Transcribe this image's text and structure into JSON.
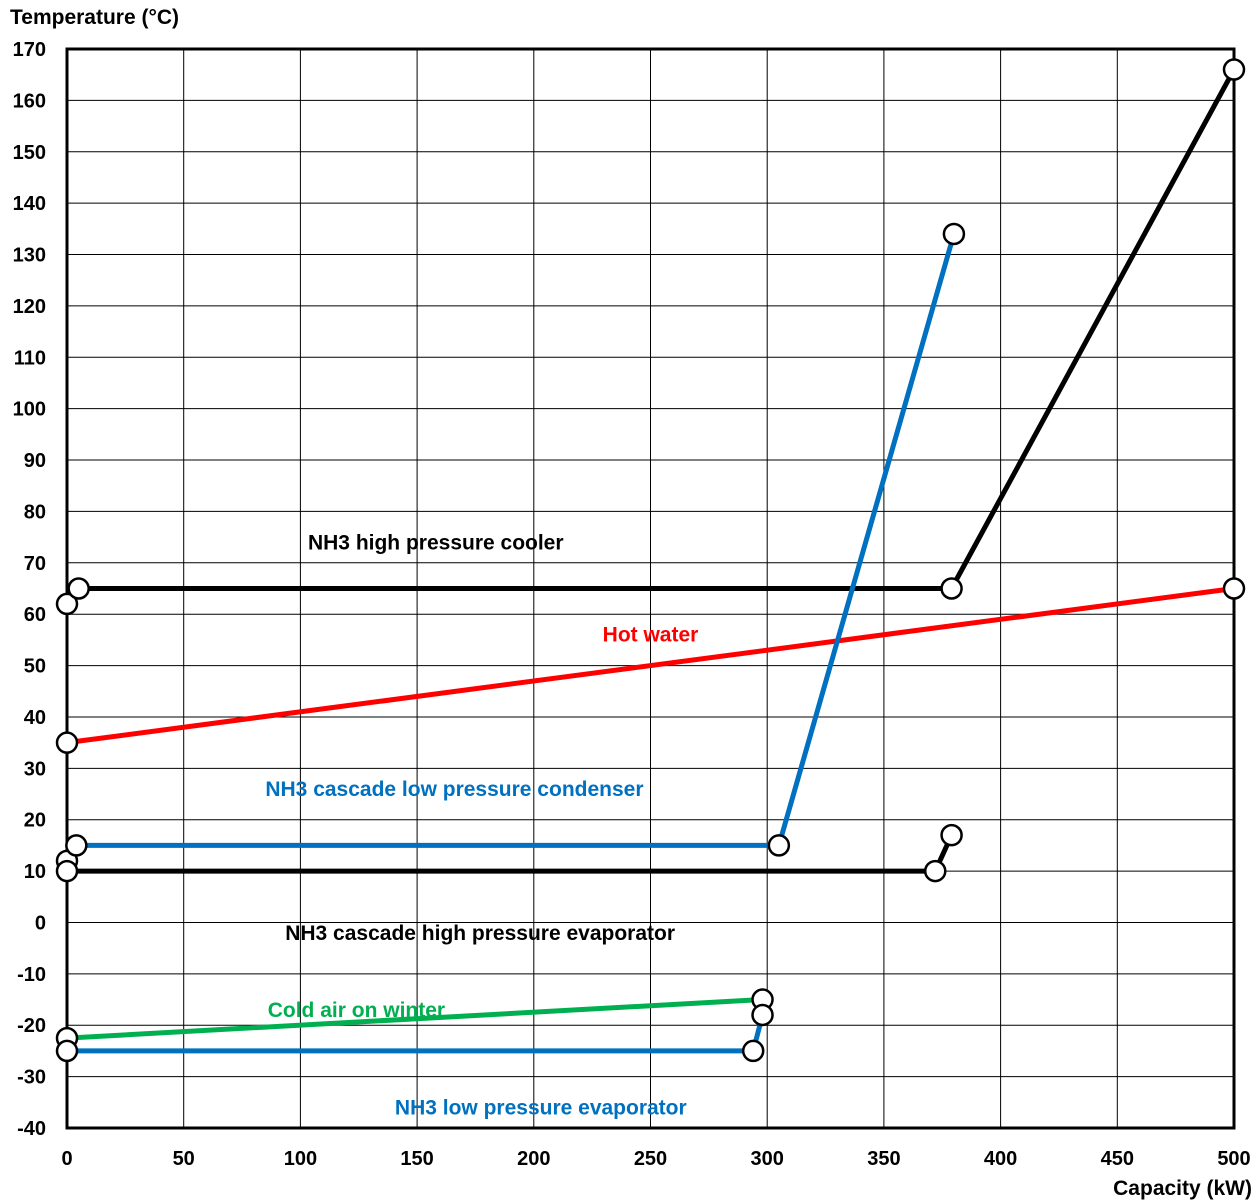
{
  "chart_data": {
    "type": "line",
    "ylabel": "Temperature (°C)",
    "xlabel": "Capacity (kW)",
    "xlim": [
      0,
      500
    ],
    "ylim": [
      -40,
      170
    ],
    "xticks": [
      0,
      50,
      100,
      150,
      200,
      250,
      300,
      350,
      400,
      450,
      500
    ],
    "yticks": [
      170,
      160,
      150,
      140,
      130,
      120,
      110,
      100,
      90,
      80,
      70,
      60,
      50,
      40,
      30,
      20,
      10,
      0,
      -10,
      -20,
      -30,
      -40
    ],
    "grid": true,
    "series": [
      {
        "name": "NH3 high pressure cooler",
        "color": "#000000",
        "points": [
          [
            5,
            65
          ],
          [
            379,
            65
          ],
          [
            500,
            166
          ]
        ]
      },
      {
        "name": "Hot water",
        "color": "#ff0000",
        "points": [
          [
            0,
            35
          ],
          [
            500,
            65
          ]
        ]
      },
      {
        "name": "NH3 cascade low pressure condenser",
        "color": "#0070c0",
        "points": [
          [
            4,
            15
          ],
          [
            305,
            15
          ],
          [
            380,
            134
          ]
        ]
      },
      {
        "name": "NH3 cascade high pressure evaporator",
        "color": "#000000",
        "points": [
          [
            0,
            10
          ],
          [
            372,
            10
          ],
          [
            379,
            17
          ]
        ]
      },
      {
        "name": "Cold air on winter",
        "color": "#00b050",
        "points": [
          [
            0,
            -22.5
          ],
          [
            298,
            -15
          ]
        ]
      },
      {
        "name": "NH3 low pressure evaporator",
        "color": "#0070c0",
        "points": [
          [
            0,
            -25
          ],
          [
            294,
            -25
          ],
          [
            298,
            -18
          ]
        ]
      }
    ],
    "extra_markers": [
      [
        0,
        62
      ],
      [
        0,
        12
      ]
    ],
    "annotations": [
      {
        "text": "NH3 high pressure cooler",
        "x": 158,
        "y": 74,
        "color": "#000000"
      },
      {
        "text": "Hot water",
        "x": 250,
        "y": 56,
        "color": "#ff0000"
      },
      {
        "text": "NH3 cascade low pressure condenser",
        "x": 166,
        "y": 26,
        "color": "#0070c0"
      },
      {
        "text": "NH3 cascade high pressure evaporator",
        "x": 177,
        "y": -2,
        "color": "#000000"
      },
      {
        "text": "Cold air on winter",
        "x": 124,
        "y": -17,
        "color": "#00b050"
      },
      {
        "text": "NH3 low pressure evaporator",
        "x": 203,
        "y": -36,
        "color": "#0070c0"
      }
    ]
  }
}
